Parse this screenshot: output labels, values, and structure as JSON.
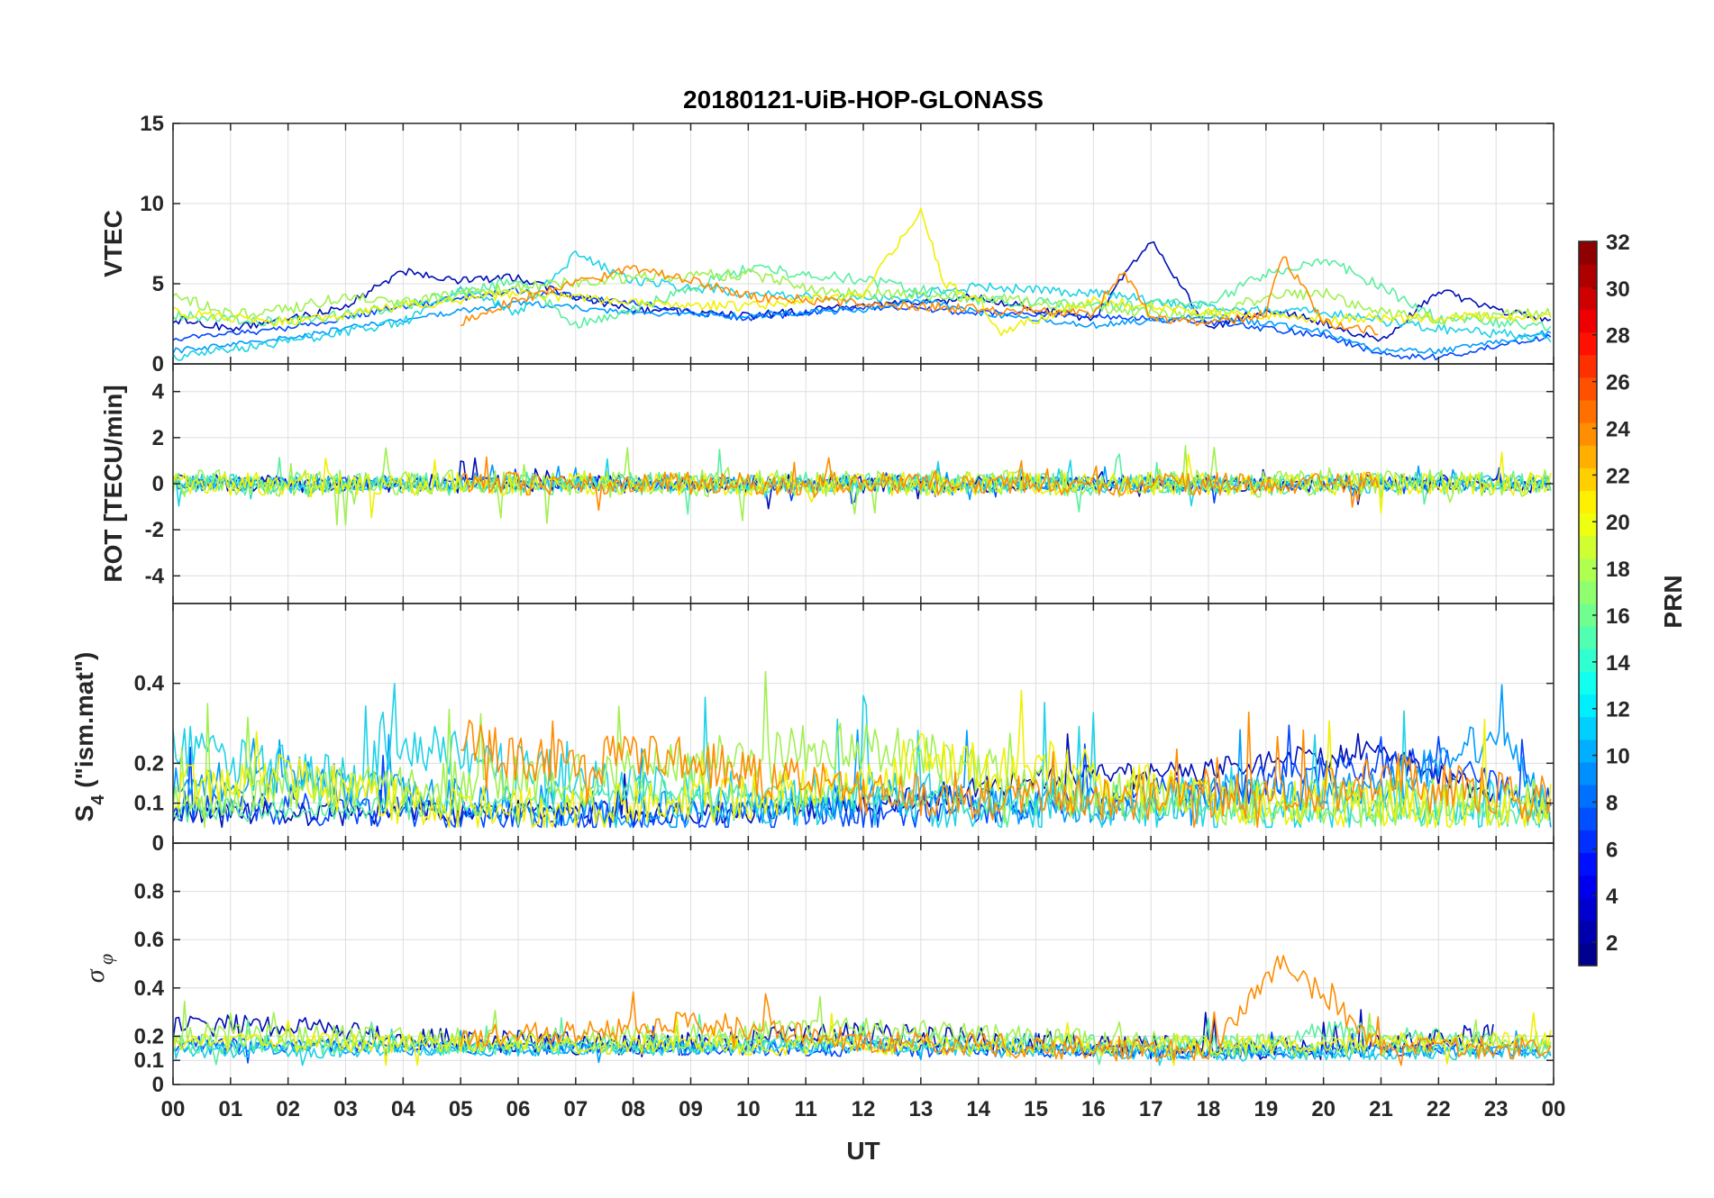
{
  "chart_data": {
    "type": "line",
    "title": "20180121-UiB-HOP-GLONASS",
    "xlabel": "UT",
    "x_range_hours": [
      0,
      24
    ],
    "x_tick_labels": [
      "00",
      "01",
      "02",
      "03",
      "04",
      "05",
      "06",
      "07",
      "08",
      "09",
      "10",
      "11",
      "12",
      "13",
      "14",
      "15",
      "16",
      "17",
      "18",
      "19",
      "20",
      "21",
      "22",
      "23",
      "00"
    ],
    "panels": [
      {
        "id": "vtec",
        "ylabel": "VTEC",
        "ylim": [
          0,
          15
        ],
        "yticks": [
          0,
          5,
          10,
          15
        ],
        "ytick_labels": [
          "0",
          "5",
          "10",
          "15"
        ],
        "grid": true
      },
      {
        "id": "rot",
        "ylabel": "ROT [TECU/min]",
        "ylim": [
          -5.2,
          5.2
        ],
        "yticks": [
          -4,
          -2,
          0,
          2,
          4
        ],
        "ytick_labels": [
          "-4",
          "-2",
          "0",
          "2",
          "4"
        ],
        "grid": true
      },
      {
        "id": "s4",
        "ylabel_main": "S",
        "ylabel_sub": "4",
        "ylabel_rest": " (\"ism.mat\")",
        "ylim": [
          0,
          0.6
        ],
        "yticks": [
          0,
          0.1,
          0.2,
          0.4
        ],
        "ytick_labels": [
          "0",
          "0.1",
          "0.2",
          "0.4"
        ],
        "grid": true
      },
      {
        "id": "sigma",
        "ylabel_main": "σ",
        "ylabel_sub": "φ",
        "ylim": [
          0,
          1
        ],
        "yticks": [
          0,
          0.1,
          0.2,
          0.4,
          0.6,
          0.8
        ],
        "ytick_labels": [
          "0",
          "0.1",
          "0.2",
          "0.4",
          "0.6",
          "0.8"
        ],
        "grid": true
      }
    ],
    "colorbar": {
      "label": "PRN",
      "range": [
        1,
        32
      ],
      "colormap": "jet",
      "ticks": [
        2,
        4,
        6,
        8,
        10,
        12,
        14,
        16,
        18,
        20,
        22,
        24,
        26,
        28,
        30,
        32
      ],
      "tick_labels": [
        "2",
        "4",
        "6",
        "8",
        "10",
        "12",
        "14",
        "16",
        "18",
        "20",
        "22",
        "24",
        "26",
        "28",
        "30",
        "32"
      ]
    },
    "series": [
      {
        "prn": 2,
        "color": "#000fb4",
        "vtec_h": [
          [
            0,
            2.8
          ],
          [
            1,
            2.2
          ],
          [
            2,
            2.8
          ],
          [
            3,
            3.6
          ],
          [
            4,
            5.8
          ],
          [
            5,
            5.2
          ],
          [
            6,
            5.4
          ],
          [
            7,
            4.2
          ],
          [
            8,
            3.4
          ],
          [
            10,
            3.0
          ],
          [
            12,
            3.6
          ],
          [
            13,
            3.8
          ],
          [
            14,
            4.2
          ],
          [
            15,
            3.4
          ],
          [
            16,
            2.8
          ],
          [
            17,
            7.8
          ],
          [
            18,
            2.2
          ],
          [
            19,
            3.4
          ],
          [
            20,
            2.6
          ],
          [
            21,
            1.4
          ],
          [
            22,
            4.6
          ],
          [
            23,
            3.4
          ],
          [
            24,
            2.6
          ]
        ],
        "s4_h": [
          [
            0,
            0.07
          ],
          [
            3,
            0.06
          ],
          [
            6,
            0.07
          ],
          [
            9,
            0.06
          ],
          [
            12,
            0.08
          ],
          [
            15,
            0.15
          ],
          [
            18,
            0.17
          ],
          [
            21,
            0.22
          ],
          [
            23,
            0.1
          ]
        ],
        "sig_h": [
          [
            0,
            0.22
          ],
          [
            2,
            0.24
          ],
          [
            4,
            0.18
          ],
          [
            8,
            0.15
          ],
          [
            12,
            0.2
          ],
          [
            16,
            0.15
          ],
          [
            20,
            0.14
          ],
          [
            23,
            0.2
          ]
        ],
        "rot_amp": 0.4,
        "vtec_noise": 0.25,
        "s4_noise": 0.03,
        "sig_noise": 0.05
      },
      {
        "prn": 5,
        "color": "#0046ff",
        "vtec_h": [
          [
            0,
            1.6
          ],
          [
            2,
            2.2
          ],
          [
            4,
            3.6
          ],
          [
            6,
            4.6
          ],
          [
            8,
            3.8
          ],
          [
            10,
            2.8
          ],
          [
            12,
            3.6
          ],
          [
            14,
            3.2
          ],
          [
            16,
            3.0
          ],
          [
            18,
            2.6
          ],
          [
            20,
            1.8
          ],
          [
            21,
            0.6
          ],
          [
            22,
            0.4
          ],
          [
            24,
            1.8
          ]
        ],
        "s4_h": [
          [
            0,
            0.08
          ],
          [
            4,
            0.06
          ],
          [
            8,
            0.05
          ],
          [
            12,
            0.06
          ],
          [
            15,
            0.08
          ],
          [
            18,
            0.12
          ],
          [
            21,
            0.18
          ],
          [
            22,
            0.2
          ],
          [
            24,
            0.07
          ]
        ],
        "sig_h": [
          [
            0,
            0.16
          ],
          [
            6,
            0.15
          ],
          [
            12,
            0.14
          ],
          [
            18,
            0.13
          ],
          [
            24,
            0.15
          ]
        ],
        "rot_amp": 0.3,
        "vtec_noise": 0.2,
        "s4_noise": 0.04,
        "sig_noise": 0.03
      },
      {
        "prn": 10,
        "color": "#009bff",
        "vtec_h": [
          [
            0,
            0.8
          ],
          [
            2,
            1.6
          ],
          [
            4,
            2.8
          ],
          [
            6,
            3.8
          ],
          [
            8,
            3.2
          ],
          [
            10,
            3.0
          ],
          [
            12,
            3.4
          ],
          [
            13,
            4.0
          ],
          [
            14,
            3.2
          ],
          [
            16,
            2.4
          ],
          [
            18,
            3.0
          ],
          [
            20,
            2.0
          ],
          [
            21,
            0.8
          ],
          [
            22,
            0.8
          ],
          [
            24,
            2.0
          ]
        ],
        "s4_h": [
          [
            0,
            0.12
          ],
          [
            2,
            0.15
          ],
          [
            4,
            0.1
          ],
          [
            8,
            0.06
          ],
          [
            12,
            0.09
          ],
          [
            16,
            0.07
          ],
          [
            18,
            0.1
          ],
          [
            21,
            0.12
          ],
          [
            23,
            0.25
          ],
          [
            24,
            0.07
          ]
        ],
        "sig_h": [
          [
            0,
            0.15
          ],
          [
            6,
            0.14
          ],
          [
            12,
            0.16
          ],
          [
            18,
            0.13
          ],
          [
            24,
            0.14
          ]
        ],
        "rot_amp": 0.3,
        "vtec_noise": 0.2,
        "s4_noise": 0.05,
        "sig_noise": 0.03
      },
      {
        "prn": 12,
        "color": "#1ed2e6",
        "vtec_h": [
          [
            0,
            0.4
          ],
          [
            2,
            1.4
          ],
          [
            4,
            2.6
          ],
          [
            5,
            4.6
          ],
          [
            6,
            3.2
          ],
          [
            7,
            6.8
          ],
          [
            8,
            5.2
          ],
          [
            10,
            4.4
          ],
          [
            12,
            4.0
          ],
          [
            14,
            4.8
          ],
          [
            16,
            4.4
          ],
          [
            18,
            3.6
          ],
          [
            20,
            3.2
          ],
          [
            22,
            2.2
          ],
          [
            24,
            1.6
          ]
        ],
        "s4_h": [
          [
            0,
            0.2
          ],
          [
            1,
            0.18
          ],
          [
            2,
            0.15
          ],
          [
            3,
            0.12
          ],
          [
            4,
            0.22
          ],
          [
            5,
            0.18
          ],
          [
            6,
            0.15
          ],
          [
            8,
            0.1
          ],
          [
            12,
            0.08
          ],
          [
            16,
            0.07
          ],
          [
            20,
            0.07
          ],
          [
            24,
            0.06
          ]
        ],
        "sig_h": [
          [
            0,
            0.13
          ],
          [
            6,
            0.14
          ],
          [
            12,
            0.15
          ],
          [
            18,
            0.12
          ],
          [
            24,
            0.13
          ]
        ],
        "rot_amp": 0.4,
        "vtec_noise": 0.3,
        "s4_noise": 0.07,
        "sig_noise": 0.03
      },
      {
        "prn": 16,
        "color": "#5aeea0",
        "vtec_h": [
          [
            0,
            3.0
          ],
          [
            2,
            2.6
          ],
          [
            4,
            3.6
          ],
          [
            6,
            5.2
          ],
          [
            7,
            2.4
          ],
          [
            8,
            3.4
          ],
          [
            10,
            6.0
          ],
          [
            12,
            5.2
          ],
          [
            14,
            4.0
          ],
          [
            16,
            3.6
          ],
          [
            18,
            3.8
          ],
          [
            19,
            5.6
          ],
          [
            20,
            6.6
          ],
          [
            21,
            4.8
          ],
          [
            22,
            2.8
          ],
          [
            24,
            2.4
          ]
        ],
        "s4_h": [
          [
            0,
            0.07
          ],
          [
            6,
            0.08
          ],
          [
            8,
            0.12
          ],
          [
            12,
            0.1
          ],
          [
            16,
            0.08
          ],
          [
            18,
            0.07
          ],
          [
            20,
            0.06
          ],
          [
            24,
            0.06
          ]
        ],
        "sig_h": [
          [
            0,
            0.16
          ],
          [
            6,
            0.15
          ],
          [
            12,
            0.17
          ],
          [
            19,
            0.16
          ],
          [
            20,
            0.22
          ],
          [
            24,
            0.15
          ]
        ],
        "rot_amp": 0.5,
        "vtec_noise": 0.35,
        "s4_noise": 0.03,
        "sig_noise": 0.04
      },
      {
        "prn": 18,
        "color": "#a0f050",
        "vtec_h": [
          [
            0,
            4.4
          ],
          [
            1,
            3.0
          ],
          [
            2,
            3.4
          ],
          [
            3,
            4.2
          ],
          [
            4,
            3.8
          ],
          [
            6,
            4.8
          ],
          [
            8,
            5.4
          ],
          [
            10,
            5.6
          ],
          [
            11,
            4.8
          ],
          [
            12,
            4.4
          ],
          [
            14,
            4.2
          ],
          [
            16,
            3.4
          ],
          [
            18,
            3.0
          ],
          [
            19,
            4.2
          ],
          [
            20,
            4.4
          ],
          [
            21,
            3.2
          ],
          [
            22,
            2.8
          ],
          [
            24,
            3.2
          ]
        ],
        "s4_h": [
          [
            0,
            0.1
          ],
          [
            4,
            0.12
          ],
          [
            8,
            0.15
          ],
          [
            10,
            0.2
          ],
          [
            12,
            0.22
          ],
          [
            13,
            0.2
          ],
          [
            15,
            0.12
          ],
          [
            18,
            0.08
          ],
          [
            24,
            0.08
          ]
        ],
        "sig_h": [
          [
            0,
            0.2
          ],
          [
            6,
            0.17
          ],
          [
            10,
            0.2
          ],
          [
            12,
            0.22
          ],
          [
            18,
            0.15
          ],
          [
            24,
            0.16
          ]
        ],
        "rot_amp": 0.6,
        "vtec_noise": 0.35,
        "s4_noise": 0.06,
        "sig_noise": 0.05
      },
      {
        "prn": 20,
        "color": "#f0f000",
        "vtec_h": [
          [
            0,
            3.2
          ],
          [
            2,
            2.6
          ],
          [
            4,
            3.6
          ],
          [
            6,
            4.4
          ],
          [
            8,
            3.8
          ],
          [
            10,
            3.6
          ],
          [
            12,
            4.4
          ],
          [
            13,
            9.6
          ],
          [
            13.4,
            5.0
          ],
          [
            14,
            4.0
          ],
          [
            14.4,
            2.0
          ],
          [
            16,
            4.0
          ],
          [
            18,
            3.2
          ],
          [
            20,
            2.8
          ],
          [
            24,
            3.0
          ]
        ],
        "s4_h": [
          [
            0,
            0.12
          ],
          [
            2,
            0.14
          ],
          [
            4,
            0.08
          ],
          [
            5,
            0.05
          ],
          [
            8,
            0.07
          ],
          [
            12,
            0.12
          ],
          [
            13,
            0.2
          ],
          [
            14,
            0.15
          ],
          [
            15,
            0.18
          ],
          [
            18,
            0.08
          ],
          [
            24,
            0.07
          ]
        ],
        "sig_h": [
          [
            0,
            0.17
          ],
          [
            6,
            0.16
          ],
          [
            12,
            0.15
          ],
          [
            18,
            0.15
          ],
          [
            24,
            0.18
          ]
        ],
        "rot_amp": 0.5,
        "vtec_noise": 0.3,
        "s4_noise": 0.06,
        "sig_noise": 0.04
      },
      {
        "prn": 23,
        "color": "#ff8c00",
        "vtec_h": [
          [
            5,
            2.6
          ],
          [
            6,
            4.0
          ],
          [
            7,
            5.0
          ],
          [
            8,
            6.0
          ],
          [
            9,
            5.2
          ],
          [
            10,
            4.2
          ],
          [
            12,
            3.8
          ],
          [
            14,
            3.4
          ],
          [
            16,
            3.2
          ],
          [
            16.5,
            5.8
          ],
          [
            17,
            3.0
          ],
          [
            18,
            2.4
          ],
          [
            19,
            3.2
          ],
          [
            19.3,
            6.8
          ],
          [
            20,
            2.6
          ],
          [
            21,
            2.0
          ]
        ],
        "s4_h": [
          [
            5,
            0.25
          ],
          [
            6,
            0.18
          ],
          [
            8,
            0.2
          ],
          [
            9,
            0.18
          ],
          [
            10,
            0.15
          ],
          [
            12,
            0.1
          ],
          [
            16,
            0.09
          ],
          [
            18,
            0.09
          ],
          [
            20,
            0.1
          ],
          [
            21,
            0.15
          ],
          [
            22,
            0.12
          ],
          [
            24,
            0.08
          ]
        ],
        "sig_h": [
          [
            5,
            0.18
          ],
          [
            6,
            0.2
          ],
          [
            8,
            0.22
          ],
          [
            9,
            0.25
          ],
          [
            12,
            0.17
          ],
          [
            16,
            0.14
          ],
          [
            18,
            0.13
          ],
          [
            19.3,
            0.5
          ],
          [
            21,
            0.15
          ],
          [
            24,
            0.14
          ]
        ],
        "rot_amp": 0.5,
        "vtec_noise": 0.3,
        "s4_noise": 0.06,
        "sig_noise": 0.05
      }
    ]
  }
}
